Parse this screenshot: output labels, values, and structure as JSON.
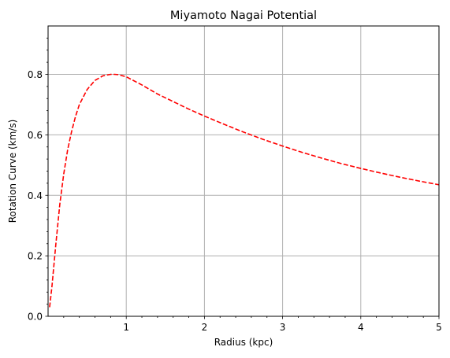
{
  "chart_data": {
    "type": "line",
    "title": "Miyamoto Nagai Potential",
    "xlabel": "Radius (kpc)",
    "ylabel": "Rotation Curve (km/s)",
    "xlim": [
      0,
      5
    ],
    "ylim": [
      0,
      0.96
    ],
    "x_ticks": [
      1,
      2,
      3,
      4,
      5
    ],
    "x_tick_labels": [
      "1",
      "2",
      "3",
      "4",
      "5"
    ],
    "y_ticks": [
      0.0,
      0.2,
      0.4,
      0.6,
      0.8
    ],
    "y_tick_labels": [
      "0.0",
      "0.2",
      "0.4",
      "0.6",
      "0.8"
    ],
    "x_minor_step": 0.2,
    "y_minor_step": 0.04,
    "grid": true,
    "series": [
      {
        "line_style": "dashed",
        "color": "#ff0000",
        "x": [
          0.02,
          0.05,
          0.1,
          0.15,
          0.2,
          0.25,
          0.3,
          0.35,
          0.4,
          0.5,
          0.6,
          0.7,
          0.8,
          0.85,
          0.9,
          1.0,
          1.2,
          1.4,
          1.6,
          1.8,
          2.0,
          2.25,
          2.5,
          2.75,
          3.0,
          3.25,
          3.5,
          3.75,
          4.0,
          4.25,
          4.5,
          4.75,
          5.0
        ],
        "y": [
          0.03,
          0.1,
          0.24,
          0.37,
          0.47,
          0.55,
          0.61,
          0.66,
          0.7,
          0.75,
          0.78,
          0.795,
          0.8,
          0.8,
          0.799,
          0.792,
          0.765,
          0.735,
          0.71,
          0.685,
          0.662,
          0.635,
          0.609,
          0.585,
          0.563,
          0.542,
          0.523,
          0.505,
          0.489,
          0.474,
          0.46,
          0.447,
          0.435
        ]
      }
    ]
  }
}
